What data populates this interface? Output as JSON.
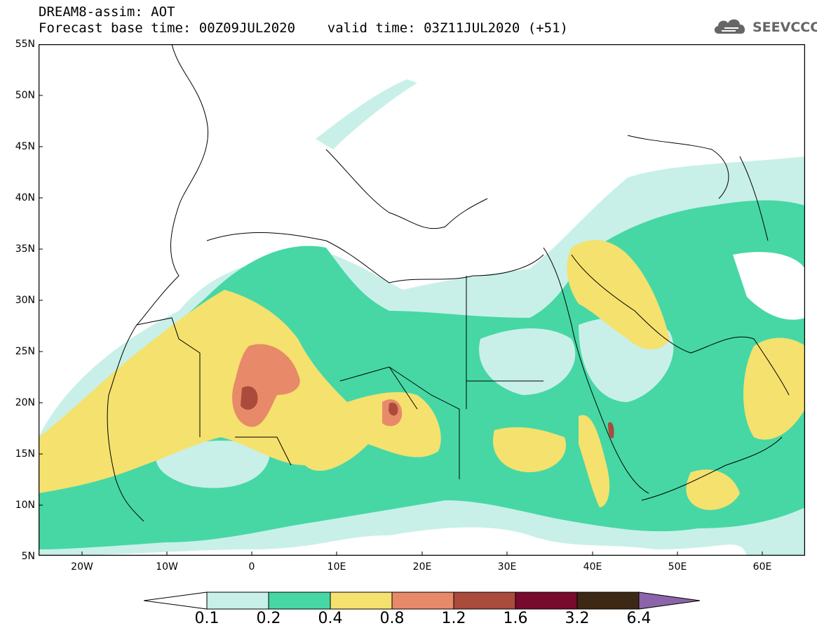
{
  "header": {
    "line1": "DREAM8-assim: AOT",
    "line2": "Forecast base time: 00Z09JUL2020    valid time: 03Z11JUL2020 (+51)"
  },
  "logo": {
    "text": "SEEVCCC",
    "icon": "cloud-icon"
  },
  "map": {
    "lat_labels": [
      "55N",
      "50N",
      "45N",
      "40N",
      "35N",
      "30N",
      "25N",
      "20N",
      "15N",
      "10N",
      "5N"
    ],
    "lon_labels": [
      "20W",
      "10W",
      "0",
      "10E",
      "20E",
      "30E",
      "40E",
      "50E",
      "60E"
    ],
    "lat_range": [
      5,
      55
    ],
    "lon_range": [
      -25,
      65
    ]
  },
  "colorbar": {
    "labels": [
      "0.1",
      "0.2",
      "0.4",
      "0.8",
      "1.2",
      "1.6",
      "3.2",
      "6.4"
    ],
    "colors": [
      "#ffffff",
      "#c8f0e8",
      "#46d7a5",
      "#f5e16e",
      "#e8896a",
      "#aa4b3c",
      "#780a2d",
      "#3c2814",
      "#8c64aa"
    ]
  }
}
